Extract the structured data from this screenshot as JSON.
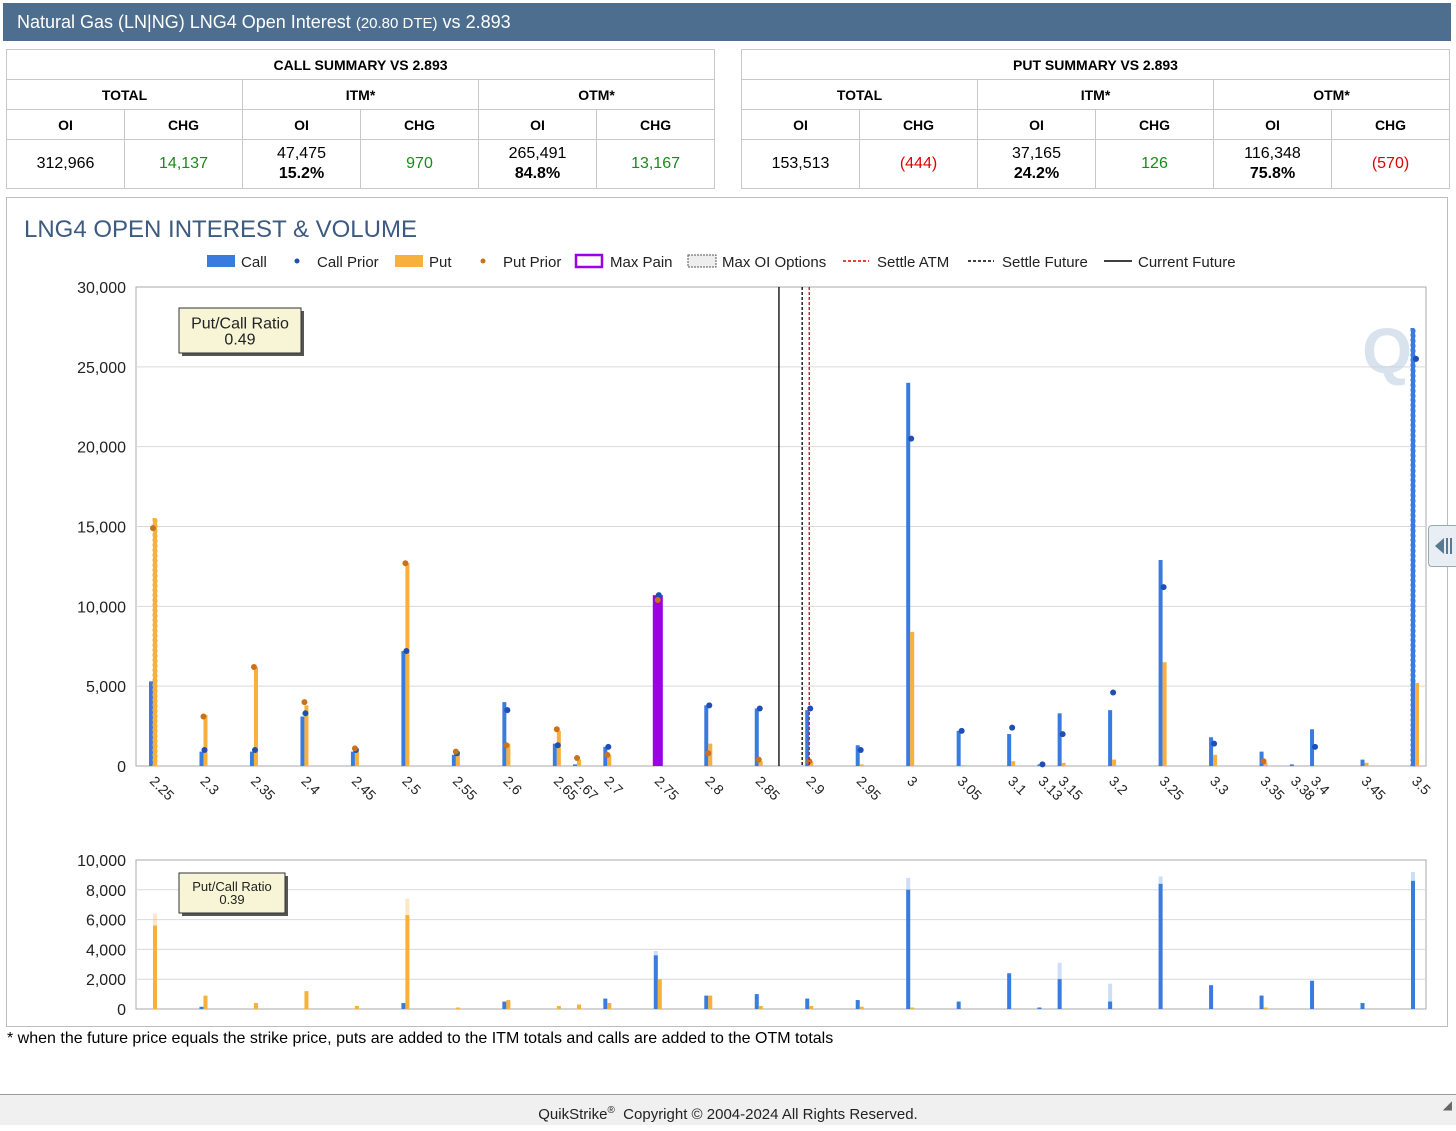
{
  "header": {
    "title": "Natural Gas (LN|NG) LNG4 Open Interest",
    "dte": "(20.80 DTE)",
    "vs": "vs",
    "price": "2.893"
  },
  "call_summary": {
    "title": "CALL SUMMARY VS 2.893",
    "groups": [
      "TOTAL",
      "ITM*",
      "OTM*"
    ],
    "cols": [
      "OI",
      "CHG",
      "OI",
      "CHG",
      "OI",
      "CHG"
    ],
    "total_oi": "312,966",
    "total_chg": "14,137",
    "itm_oi": "47,475",
    "itm_pct": "15.2%",
    "itm_chg": "970",
    "otm_oi": "265,491",
    "otm_pct": "84.8%",
    "otm_chg": "13,167"
  },
  "put_summary": {
    "title": "PUT SUMMARY VS 2.893",
    "groups": [
      "TOTAL",
      "ITM*",
      "OTM*"
    ],
    "cols": [
      "OI",
      "CHG",
      "OI",
      "CHG",
      "OI",
      "CHG"
    ],
    "total_oi": "153,513",
    "total_chg": "(444)",
    "itm_oi": "37,165",
    "itm_pct": "24.2%",
    "itm_chg": "126",
    "otm_oi": "116,348",
    "otm_pct": "75.8%",
    "otm_chg": "(570)"
  },
  "colors": {
    "call": "#3a7be0",
    "put": "#f7b03c",
    "call_prior": "#1f4fb5",
    "put_prior": "#c8731c",
    "max_pain": "#9b00e6",
    "settle_atm": "#e00000",
    "settle_future": "#000000",
    "current_future": "#000000",
    "grid": "#d9d9d9",
    "header_bg": "#4d6e8f"
  },
  "chart_data": [
    {
      "type": "bar",
      "title": "LNG4 OPEN INTEREST & VOLUME",
      "legend": [
        "Call",
        "Call Prior",
        "Put",
        "Put Prior",
        "Max Pain",
        "Max OI Options",
        "Settle ATM",
        "Settle Future",
        "Current Future"
      ],
      "legend_position": "top",
      "categories": [
        "2.25",
        "2.3",
        "2.35",
        "2.4",
        "2.45",
        "2.5",
        "2.55",
        "2.6",
        "2.65",
        "2.67",
        "2.7",
        "2.75",
        "2.8",
        "2.85",
        "2.9",
        "2.95",
        "3",
        "3.05",
        "3.1",
        "3.13",
        "3.15",
        "3.2",
        "3.25",
        "3.3",
        "3.35",
        "3.38",
        "3.4",
        "3.45",
        "3.5"
      ],
      "strikes": [
        2.25,
        2.3,
        2.35,
        2.4,
        2.45,
        2.5,
        2.55,
        2.6,
        2.65,
        2.67,
        2.7,
        2.75,
        2.8,
        2.85,
        2.9,
        2.95,
        3,
        3.05,
        3.1,
        3.13,
        3.15,
        3.2,
        3.25,
        3.3,
        3.35,
        3.38,
        3.4,
        3.45,
        3.5
      ],
      "series": [
        {
          "name": "Call",
          "values": [
            5300,
            900,
            900,
            3100,
            900,
            7200,
            700,
            4000,
            1400,
            100,
            1200,
            10700,
            3800,
            3600,
            3500,
            1300,
            24000,
            2200,
            2000,
            100,
            3300,
            3500,
            12900,
            1800,
            900,
            100,
            2300,
            400,
            27400
          ]
        },
        {
          "name": "Call Prior",
          "values": [
            null,
            1000,
            1000,
            3300,
            1000,
            7200,
            800,
            3500,
            1300,
            null,
            1200,
            10700,
            3800,
            3600,
            3600,
            1000,
            20500,
            2200,
            2400,
            100,
            2000,
            4600,
            11200,
            1400,
            null,
            null,
            1200,
            null,
            25500
          ]
        },
        {
          "name": "Put",
          "values": [
            15500,
            3200,
            6200,
            3800,
            1000,
            12700,
            900,
            1400,
            2200,
            400,
            700,
            10300,
            1400,
            300,
            300,
            100,
            8400,
            50,
            300,
            null,
            200,
            400,
            6500,
            700,
            200,
            null,
            null,
            200,
            5200
          ]
        },
        {
          "name": "Put Prior",
          "values": [
            14900,
            3100,
            6200,
            4000,
            1100,
            12700,
            900,
            1300,
            2300,
            500,
            700,
            10400,
            800,
            400,
            300,
            null,
            null,
            null,
            null,
            null,
            null,
            null,
            null,
            null,
            300,
            null,
            null,
            null,
            null
          ]
        }
      ],
      "max_pain_strike": "2.75",
      "settle_atm": 2.9,
      "settle_future": 2.893,
      "current_future": 2.87,
      "ylim": [
        0,
        30000
      ],
      "yticks": [
        "0",
        "5,000",
        "10,000",
        "15,000",
        "20,000",
        "25,000",
        "30,000"
      ],
      "ratio_label": "Put/Call Ratio",
      "ratio_value": "0.49"
    },
    {
      "type": "bar",
      "title": "",
      "strikes": [
        2.25,
        2.3,
        2.35,
        2.4,
        2.45,
        2.5,
        2.55,
        2.6,
        2.65,
        2.67,
        2.7,
        2.75,
        2.8,
        2.85,
        2.9,
        2.95,
        3,
        3.05,
        3.1,
        3.13,
        3.15,
        3.2,
        3.25,
        3.3,
        3.35,
        3.38,
        3.4,
        3.45,
        3.5
      ],
      "series": [
        {
          "name": "Call",
          "values": [
            0,
            150,
            0,
            0,
            0,
            400,
            0,
            500,
            0,
            0,
            700,
            3600,
            900,
            1000,
            700,
            600,
            8000,
            500,
            2400,
            100,
            2000,
            500,
            8400,
            1600,
            900,
            0,
            1900,
            400,
            8600
          ]
        },
        {
          "name": "Call Prior",
          "values": [
            0,
            0,
            0,
            0,
            0,
            0,
            0,
            0,
            0,
            0,
            0,
            3900,
            0,
            0,
            0,
            0,
            8800,
            0,
            0,
            0,
            3100,
            1700,
            8900,
            0,
            0,
            0,
            0,
            0,
            9200
          ]
        },
        {
          "name": "Put",
          "values": [
            5600,
            900,
            400,
            1200,
            200,
            6300,
            100,
            600,
            200,
            300,
            400,
            2000,
            900,
            200,
            200,
            150,
            100,
            0,
            0,
            0,
            0,
            0,
            0,
            0,
            100,
            0,
            0,
            0,
            0
          ]
        },
        {
          "name": "Put Prior",
          "values": [
            6400,
            0,
            0,
            0,
            0,
            7400,
            0,
            0,
            0,
            0,
            0,
            0,
            0,
            0,
            0,
            0,
            0,
            0,
            0,
            0,
            0,
            0,
            0,
            0,
            0,
            0,
            0,
            0,
            0
          ]
        }
      ],
      "ylim": [
        0,
        10000
      ],
      "yticks": [
        "0",
        "2,000",
        "4,000",
        "6,000",
        "8,000",
        "10,000"
      ],
      "ratio_label": "Put/Call Ratio",
      "ratio_value": "0.39"
    }
  ],
  "footnote": "* when the future price equals the strike price, puts are added to the ITM totals and calls are added to the OTM totals",
  "footer": {
    "brand": "QuikStrike",
    "reg": "®",
    "copyright": "Copyright © 2004-2024 All Rights Reserved."
  },
  "icons": {
    "sidetab": "collapse-arrow-icon",
    "resize": "resize-grip-icon",
    "watermark": "quikstrike-logo-icon"
  }
}
